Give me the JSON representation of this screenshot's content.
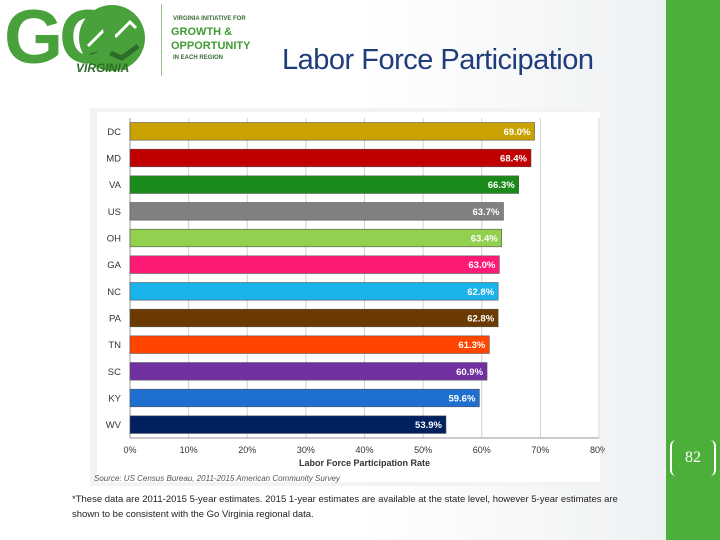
{
  "logo": {
    "go_text": "GO",
    "state_text": "VIRGINIA",
    "tagline_top": "VIRGINIA INITIATIVE FOR",
    "tagline_line1": "GROWTH &",
    "tagline_line2": "OPPORTUNITY",
    "tagline_bottom": "IN EACH REGION"
  },
  "title": "Labor Force Participation",
  "page_number": "82",
  "source_text": "Source: US Census Bureau, 2011-2015 American Community Survey",
  "footnote": "*These data are 2011-2015 5-year estimates. 2015 1-year estimates are available at the state level, however 5-year estimates are shown to be consistent with the Go Virginia regional data.",
  "colors": {
    "accent_green": "#4caf3a",
    "title_blue": "#1f3d7a"
  },
  "chart_data": {
    "type": "bar",
    "orientation": "horizontal",
    "title": "",
    "xlabel": "Labor Force Participation Rate",
    "ylabel": "",
    "xlim": [
      0,
      80
    ],
    "x_ticks": [
      "0%",
      "10%",
      "20%",
      "30%",
      "40%",
      "50%",
      "60%",
      "70%",
      "80%"
    ],
    "grid": true,
    "categories": [
      "DC",
      "MD",
      "VA",
      "US",
      "OH",
      "GA",
      "NC",
      "PA",
      "TN",
      "SC",
      "KY",
      "WV"
    ],
    "values": [
      69.0,
      68.4,
      66.3,
      63.7,
      63.4,
      63.0,
      62.8,
      62.8,
      61.3,
      60.9,
      59.6,
      53.9
    ],
    "labels": [
      "69.0%",
      "68.4%",
      "66.3%",
      "63.7%",
      "63.4%",
      "63.0%",
      "62.8%",
      "62.8%",
      "61.3%",
      "60.9%",
      "59.6%",
      "53.9%"
    ],
    "colors": [
      "#c9a200",
      "#c00000",
      "#1a8a1a",
      "#808080",
      "#92d050",
      "#ff1a75",
      "#1ab2ea",
      "#6b3a00",
      "#ff4500",
      "#7030a0",
      "#1f6fd0",
      "#002060"
    ]
  }
}
